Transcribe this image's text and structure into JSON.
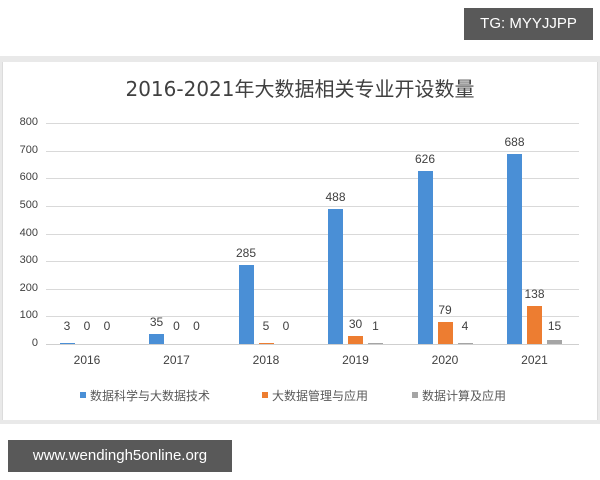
{
  "watermark_top": "TG: MYYJJPP",
  "watermark_bottom": "www.wendingh5online.org",
  "chart_data": {
    "type": "bar",
    "title": "2016-2021年大数据相关专业开设数量",
    "xlabel": "",
    "ylabel": "",
    "categories": [
      "2016",
      "2017",
      "2018",
      "2019",
      "2020",
      "2021"
    ],
    "series": [
      {
        "name": "数据科学与大数据技术",
        "color": "#4a8fd6",
        "values": [
          3,
          35,
          285,
          488,
          626,
          688
        ]
      },
      {
        "name": "大数据管理与应用",
        "color": "#ed7d31",
        "values": [
          0,
          0,
          5,
          30,
          79,
          138
        ]
      },
      {
        "name": "数据计算及应用",
        "color": "#a5a5a5",
        "values": [
          0,
          0,
          0,
          1,
          4,
          15
        ]
      }
    ],
    "ylim": [
      0,
      800
    ],
    "yticks": [
      0,
      100,
      200,
      300,
      400,
      500,
      600,
      700,
      800
    ],
    "grid": true,
    "legend_position": "bottom"
  }
}
